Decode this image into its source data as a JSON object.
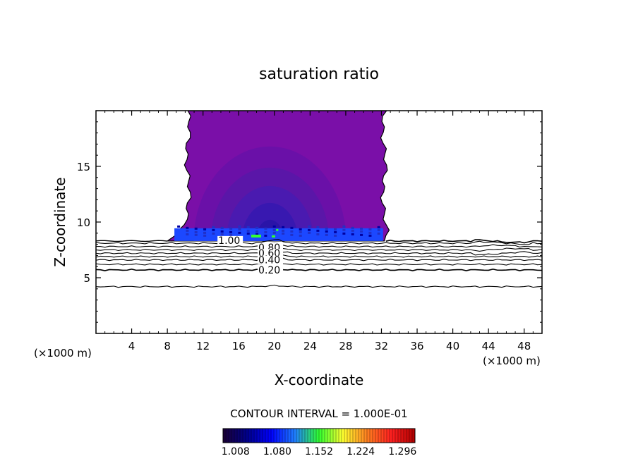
{
  "chart_data": {
    "type": "contour",
    "title": "saturation ratio",
    "xlabel": "X-coordinate",
    "ylabel": "Z-coordinate",
    "x_unit_left": "(×1000 m)",
    "x_unit_right": "(×1000 m)",
    "xlim": [
      0,
      50
    ],
    "ylim": [
      0,
      20
    ],
    "x_ticks": [
      "4",
      "8",
      "12",
      "16",
      "20",
      "24",
      "28",
      "32",
      "36",
      "40",
      "44",
      "48"
    ],
    "x_tick_values": [
      4,
      8,
      12,
      16,
      20,
      24,
      28,
      32,
      36,
      40,
      44,
      48
    ],
    "y_ticks": [
      "5",
      "10",
      "15"
    ],
    "y_tick_values": [
      5,
      10,
      15
    ],
    "contour_interval_label": "CONTOUR INTERVAL = 1.000E-01",
    "colorbar": {
      "tick_labels": [
        "1.008",
        "1.080",
        "1.152",
        "1.224",
        "1.296"
      ],
      "range": [
        0.99,
        1.32
      ],
      "colors": [
        "#1a0033",
        "#00008b",
        "#0000ff",
        "#1f7fff",
        "#30ff30",
        "#ffff30",
        "#ff8020",
        "#ff2020",
        "#b00000"
      ]
    },
    "filled_region": {
      "x_extent": [
        8.0,
        32.5
      ],
      "z_extent": [
        8.3,
        20
      ],
      "outer_color": "#7a0fa8",
      "inner_color": "#3a1ca8",
      "base_color": "#1c48ff",
      "highlight_color": "#32ff32"
    },
    "contour_lines": [
      {
        "level": 1.0,
        "label": "1.00",
        "z": 8.3
      },
      {
        "level": 0.9,
        "z": 8.1
      },
      {
        "level": 0.8,
        "label": "0.80",
        "z": 7.8
      },
      {
        "level": 0.7,
        "z": 7.5
      },
      {
        "level": 0.6,
        "label": "0.60",
        "z": 7.2
      },
      {
        "level": 0.5,
        "z": 6.9
      },
      {
        "level": 0.4,
        "label": "0.40",
        "z": 6.6
      },
      {
        "level": 0.3,
        "z": 6.2
      },
      {
        "level": 0.2,
        "label": "0.20",
        "z": 5.7
      },
      {
        "level": 0.1,
        "z": 4.2
      }
    ]
  }
}
